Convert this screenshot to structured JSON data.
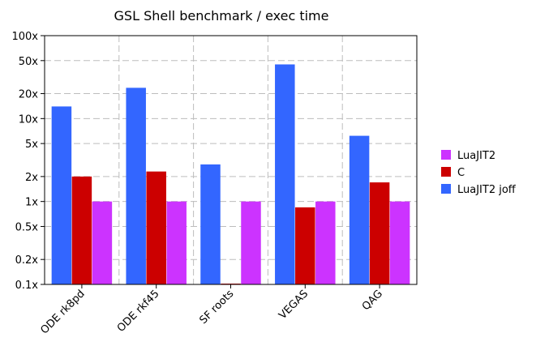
{
  "chart_data": {
    "type": "bar",
    "title": "GSL Shell benchmark / exec time",
    "xlabel": "",
    "ylabel": "",
    "y_scale": "log",
    "ylim": [
      0.1,
      100
    ],
    "y_ticks": [
      {
        "value": 0.1,
        "label": "0.1x"
      },
      {
        "value": 0.2,
        "label": "0.2x"
      },
      {
        "value": 0.5,
        "label": "0.5x"
      },
      {
        "value": 1,
        "label": "1x"
      },
      {
        "value": 2,
        "label": "2x"
      },
      {
        "value": 5,
        "label": "5x"
      },
      {
        "value": 10,
        "label": "10x"
      },
      {
        "value": 20,
        "label": "20x"
      },
      {
        "value": 50,
        "label": "50x"
      },
      {
        "value": 100,
        "label": "100x"
      }
    ],
    "grid": true,
    "legend_position": "right",
    "categories": [
      "ODE rk8pd",
      "ODE rkf45",
      "SF roots",
      "VEGAS",
      "QAG"
    ],
    "series": [
      {
        "name": "LuaJIT2 joff",
        "color": "#3366ff",
        "values": [
          14,
          23.5,
          2.8,
          45,
          6.2
        ]
      },
      {
        "name": "C",
        "color": "#cc0000",
        "values": [
          2.0,
          2.3,
          0.1,
          0.85,
          1.7
        ]
      },
      {
        "name": "LuaJIT2",
        "color": "#cc33ff",
        "values": [
          1,
          1,
          1,
          1,
          1
        ]
      }
    ],
    "legend_order": [
      "LuaJIT2",
      "C",
      "LuaJIT2 joff"
    ]
  }
}
